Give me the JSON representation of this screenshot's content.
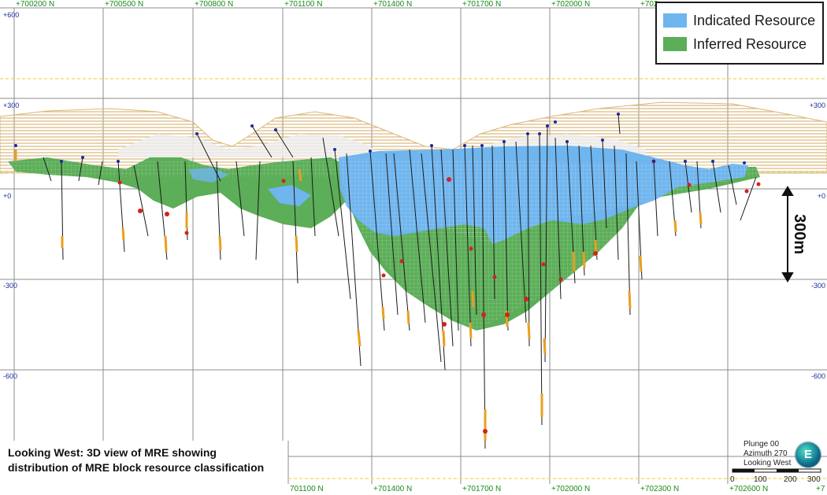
{
  "legend": {
    "items": [
      {
        "label": "Indicated Resource",
        "color": "#6fb5ee"
      },
      {
        "label": "Inferred Resource",
        "color": "#5cae58"
      }
    ]
  },
  "north_labels_top": [
    "+700200 N",
    "+700500 N",
    "+700800 N",
    "+701100 N",
    "+701400 N",
    "+701700 N",
    "+702000 N",
    "+702"
  ],
  "north_labels_bottom": [
    "701100 N",
    "+701400 N",
    "+701700 N",
    "+702000 N",
    "+702300 N",
    "+702600 N",
    "+7"
  ],
  "elevation_labels_left": [
    "+600",
    "+300",
    "+0",
    "-300",
    "-600"
  ],
  "elevation_labels_right": [
    "+300",
    "+0",
    "-300",
    "-600"
  ],
  "scale_bar_label": "300m",
  "caption": {
    "line1": "Looking West: 3D view of MRE showing",
    "line2": "distribution of MRE block resource classification"
  },
  "view_info": {
    "plunge": "Plunge 00",
    "azimuth": "Azimuth 270",
    "looking": "Looking West"
  },
  "compass_letter": "E",
  "scale_ticks": [
    "0",
    "100",
    "200",
    "300"
  ],
  "colors": {
    "grid": "#8c8c8c",
    "topography": "#d9b77a",
    "dashed_line": "#f2e06a",
    "drillhole": "#1a1a1a",
    "assay": "#e8a020",
    "high_grade": "#d42020",
    "collar": "#1b2a9a"
  }
}
